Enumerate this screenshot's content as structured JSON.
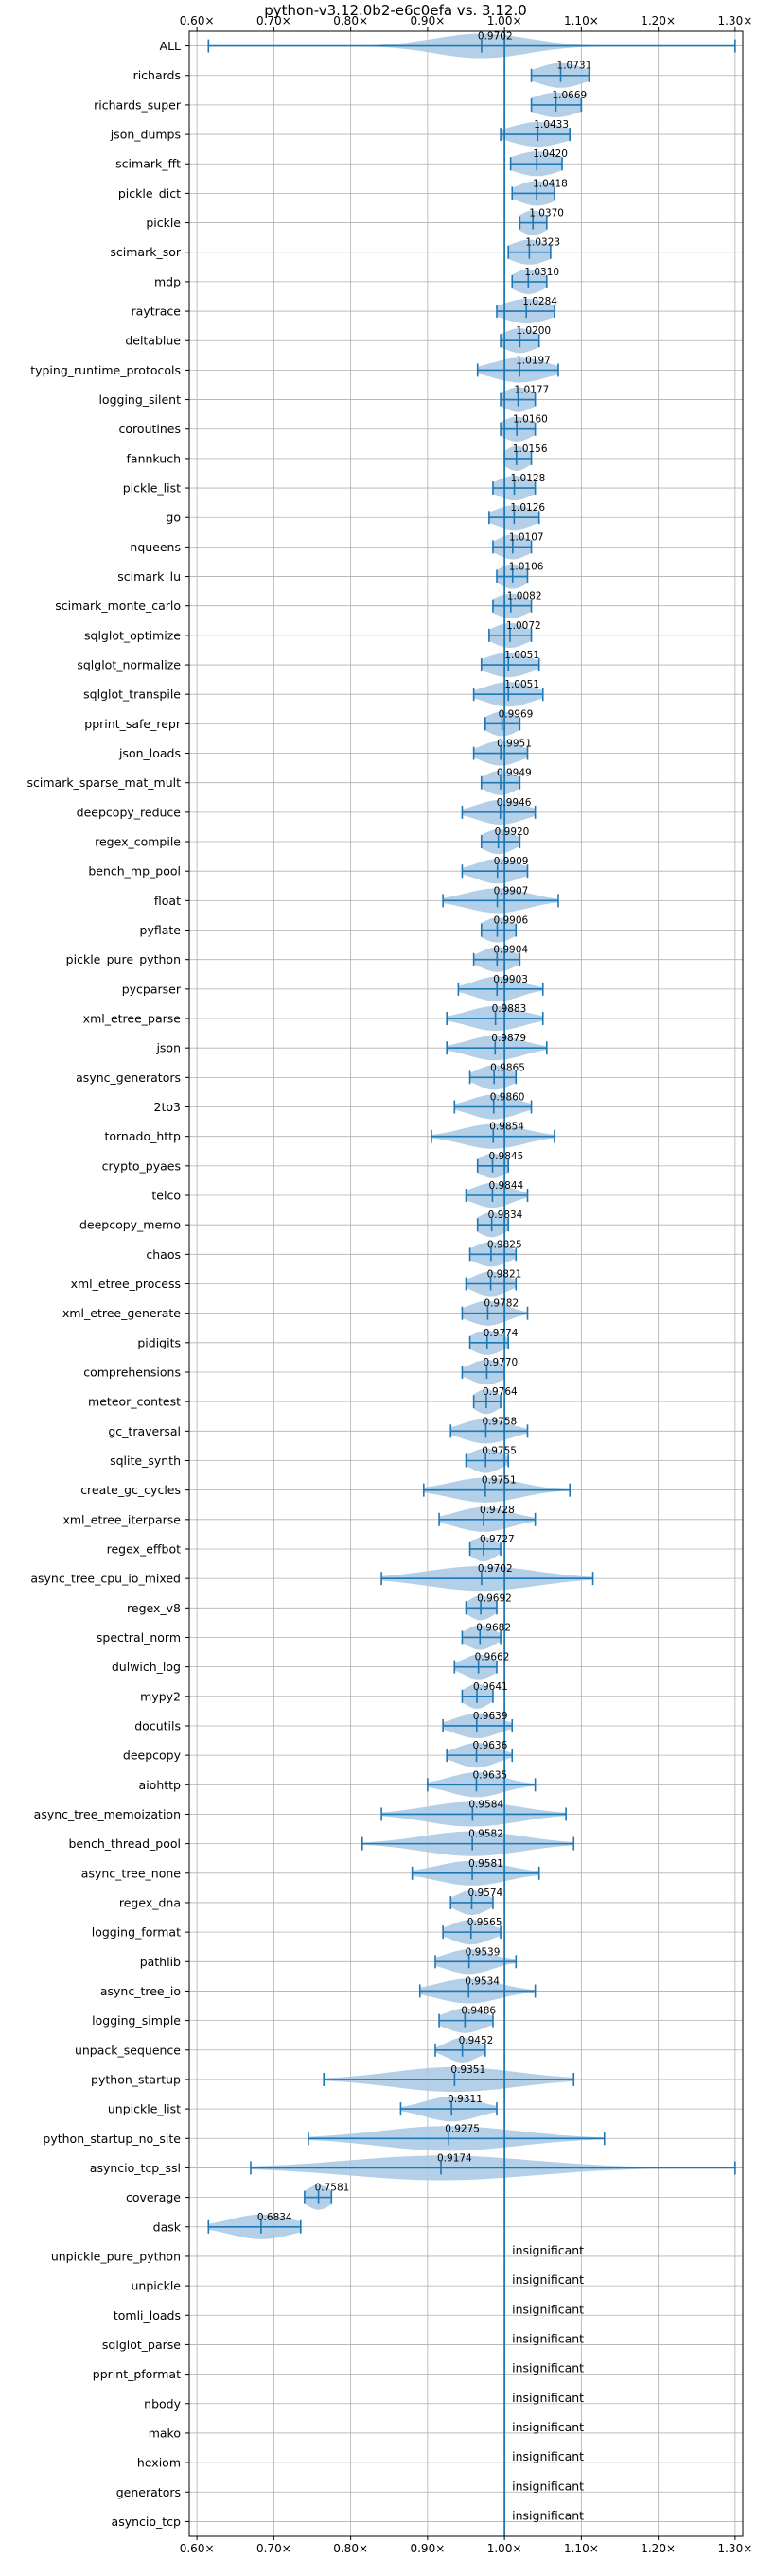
{
  "chart_data": {
    "type": "violin",
    "title": "python-v3.12.0b2-e6c0efa vs. 3.12.0",
    "xlabel": "",
    "ylabel": "",
    "xlim": [
      0.59,
      1.31
    ],
    "x_ticks": [
      0.6,
      0.7,
      0.8,
      0.9,
      1.0,
      1.1,
      1.2,
      1.3
    ],
    "x_tick_labels": [
      "0.60×",
      "0.70×",
      "0.80×",
      "0.90×",
      "1.00×",
      "1.10×",
      "1.20×",
      "1.30×"
    ],
    "reference_line": 1.0,
    "grid": true,
    "colors": {
      "series": "#1f77b4",
      "violin_fill": "#a6c8e4",
      "grid": "#b0b0b0",
      "text": "#000000"
    },
    "insignificant_label": "insignificant",
    "benchmarks": [
      {
        "name": "ALL",
        "value": 0.9702,
        "label": "0.9702",
        "min": 0.615,
        "max": 1.3,
        "spread": 0.06
      },
      {
        "name": "richards",
        "value": 1.0731,
        "label": "1.0731",
        "min": 1.035,
        "max": 1.11,
        "spread": 0.03
      },
      {
        "name": "richards_super",
        "value": 1.0669,
        "label": "1.0669",
        "min": 1.035,
        "max": 1.1,
        "spread": 0.03
      },
      {
        "name": "json_dumps",
        "value": 1.0433,
        "label": "1.0433",
        "min": 0.995,
        "max": 1.085,
        "spread": 0.035
      },
      {
        "name": "scimark_fft",
        "value": 1.042,
        "label": "1.0420",
        "min": 1.008,
        "max": 1.075,
        "spread": 0.03
      },
      {
        "name": "pickle_dict",
        "value": 1.0418,
        "label": "1.0418",
        "min": 1.01,
        "max": 1.065,
        "spread": 0.025
      },
      {
        "name": "pickle",
        "value": 1.037,
        "label": "1.0370",
        "min": 1.02,
        "max": 1.055,
        "spread": 0.018
      },
      {
        "name": "scimark_sor",
        "value": 1.0323,
        "label": "1.0323",
        "min": 1.005,
        "max": 1.06,
        "spread": 0.025
      },
      {
        "name": "mdp",
        "value": 1.031,
        "label": "1.0310",
        "min": 1.01,
        "max": 1.055,
        "spread": 0.02
      },
      {
        "name": "raytrace",
        "value": 1.0284,
        "label": "1.0284",
        "min": 0.99,
        "max": 1.065,
        "spread": 0.03
      },
      {
        "name": "deltablue",
        "value": 1.02,
        "label": "1.0200",
        "min": 0.995,
        "max": 1.045,
        "spread": 0.022
      },
      {
        "name": "typing_runtime_protocols",
        "value": 1.0197,
        "label": "1.0197",
        "min": 0.965,
        "max": 1.07,
        "spread": 0.035
      },
      {
        "name": "logging_silent",
        "value": 1.0177,
        "label": "1.0177",
        "min": 0.995,
        "max": 1.04,
        "spread": 0.02
      },
      {
        "name": "coroutines",
        "value": 1.016,
        "label": "1.0160",
        "min": 0.995,
        "max": 1.04,
        "spread": 0.02
      },
      {
        "name": "fannkuch",
        "value": 1.0156,
        "label": "1.0156",
        "min": 1.0,
        "max": 1.035,
        "spread": 0.016
      },
      {
        "name": "pickle_list",
        "value": 1.0128,
        "label": "1.0128",
        "min": 0.985,
        "max": 1.04,
        "spread": 0.022
      },
      {
        "name": "go",
        "value": 1.0126,
        "label": "1.0126",
        "min": 0.98,
        "max": 1.045,
        "spread": 0.025
      },
      {
        "name": "nqueens",
        "value": 1.0107,
        "label": "1.0107",
        "min": 0.985,
        "max": 1.035,
        "spread": 0.02
      },
      {
        "name": "scimark_lu",
        "value": 1.0106,
        "label": "1.0106",
        "min": 0.99,
        "max": 1.03,
        "spread": 0.018
      },
      {
        "name": "scimark_monte_carlo",
        "value": 1.0082,
        "label": "1.0082",
        "min": 0.985,
        "max": 1.035,
        "spread": 0.022
      },
      {
        "name": "sqlglot_optimize",
        "value": 1.0072,
        "label": "1.0072",
        "min": 0.98,
        "max": 1.035,
        "spread": 0.022
      },
      {
        "name": "sqlglot_normalize",
        "value": 1.0051,
        "label": "1.0051",
        "min": 0.97,
        "max": 1.045,
        "spread": 0.028
      },
      {
        "name": "sqlglot_transpile",
        "value": 1.0051,
        "label": "1.0051",
        "min": 0.96,
        "max": 1.05,
        "spread": 0.03
      },
      {
        "name": "pprint_safe_repr",
        "value": 0.9969,
        "label": "0.9969",
        "min": 0.975,
        "max": 1.02,
        "spread": 0.02
      },
      {
        "name": "json_loads",
        "value": 0.9951,
        "label": "0.9951",
        "min": 0.96,
        "max": 1.03,
        "spread": 0.025
      },
      {
        "name": "scimark_sparse_mat_mult",
        "value": 0.9949,
        "label": "0.9949",
        "min": 0.97,
        "max": 1.02,
        "spread": 0.02
      },
      {
        "name": "deepcopy_reduce",
        "value": 0.9946,
        "label": "0.9946",
        "min": 0.945,
        "max": 1.04,
        "spread": 0.03
      },
      {
        "name": "regex_compile",
        "value": 0.992,
        "label": "0.9920",
        "min": 0.97,
        "max": 1.02,
        "spread": 0.02
      },
      {
        "name": "bench_mp_pool",
        "value": 0.9909,
        "label": "0.9909",
        "min": 0.945,
        "max": 1.03,
        "spread": 0.028
      },
      {
        "name": "float",
        "value": 0.9907,
        "label": "0.9907",
        "min": 0.92,
        "max": 1.07,
        "spread": 0.04
      },
      {
        "name": "pyflate",
        "value": 0.9906,
        "label": "0.9906",
        "min": 0.97,
        "max": 1.015,
        "spread": 0.02
      },
      {
        "name": "pickle_pure_python",
        "value": 0.9904,
        "label": "0.9904",
        "min": 0.96,
        "max": 1.02,
        "spread": 0.022
      },
      {
        "name": "pycparser",
        "value": 0.9903,
        "label": "0.9903",
        "min": 0.94,
        "max": 1.05,
        "spread": 0.03
      },
      {
        "name": "xml_etree_parse",
        "value": 0.9883,
        "label": "0.9883",
        "min": 0.925,
        "max": 1.05,
        "spread": 0.035
      },
      {
        "name": "json",
        "value": 0.9879,
        "label": "0.9879",
        "min": 0.925,
        "max": 1.055,
        "spread": 0.035
      },
      {
        "name": "async_generators",
        "value": 0.9865,
        "label": "0.9865",
        "min": 0.955,
        "max": 1.015,
        "spread": 0.022
      },
      {
        "name": "2to3",
        "value": 0.986,
        "label": "0.9860",
        "min": 0.935,
        "max": 1.035,
        "spread": 0.03
      },
      {
        "name": "tornado_http",
        "value": 0.9854,
        "label": "0.9854",
        "min": 0.905,
        "max": 1.065,
        "spread": 0.04
      },
      {
        "name": "crypto_pyaes",
        "value": 0.9845,
        "label": "0.9845",
        "min": 0.965,
        "max": 1.005,
        "spread": 0.018
      },
      {
        "name": "telco",
        "value": 0.9844,
        "label": "0.9844",
        "min": 0.95,
        "max": 1.03,
        "spread": 0.025
      },
      {
        "name": "deepcopy_memo",
        "value": 0.9834,
        "label": "0.9834",
        "min": 0.965,
        "max": 1.005,
        "spread": 0.018
      },
      {
        "name": "chaos",
        "value": 0.9825,
        "label": "0.9825",
        "min": 0.955,
        "max": 1.015,
        "spread": 0.022
      },
      {
        "name": "xml_etree_process",
        "value": 0.9821,
        "label": "0.9821",
        "min": 0.95,
        "max": 1.015,
        "spread": 0.022
      },
      {
        "name": "xml_etree_generate",
        "value": 0.9782,
        "label": "0.9782",
        "min": 0.945,
        "max": 1.03,
        "spread": 0.025
      },
      {
        "name": "pidigits",
        "value": 0.9774,
        "label": "0.9774",
        "min": 0.955,
        "max": 1.005,
        "spread": 0.02
      },
      {
        "name": "comprehensions",
        "value": 0.977,
        "label": "0.9770",
        "min": 0.945,
        "max": 1.0,
        "spread": 0.022
      },
      {
        "name": "meteor_contest",
        "value": 0.9764,
        "label": "0.9764",
        "min": 0.96,
        "max": 0.995,
        "spread": 0.016
      },
      {
        "name": "gc_traversal",
        "value": 0.9758,
        "label": "0.9758",
        "min": 0.93,
        "max": 1.03,
        "spread": 0.03
      },
      {
        "name": "sqlite_synth",
        "value": 0.9755,
        "label": "0.9755",
        "min": 0.95,
        "max": 1.005,
        "spread": 0.02
      },
      {
        "name": "create_gc_cycles",
        "value": 0.9751,
        "label": "0.9751",
        "min": 0.895,
        "max": 1.085,
        "spread": 0.045
      },
      {
        "name": "xml_etree_iterparse",
        "value": 0.9728,
        "label": "0.9728",
        "min": 0.915,
        "max": 1.04,
        "spread": 0.035
      },
      {
        "name": "regex_effbot",
        "value": 0.9727,
        "label": "0.9727",
        "min": 0.955,
        "max": 0.995,
        "spread": 0.016
      },
      {
        "name": "async_tree_cpu_io_mixed",
        "value": 0.9702,
        "label": "0.9702",
        "min": 0.84,
        "max": 1.115,
        "spread": 0.07
      },
      {
        "name": "regex_v8",
        "value": 0.9692,
        "label": "0.9692",
        "min": 0.95,
        "max": 0.99,
        "spread": 0.016
      },
      {
        "name": "spectral_norm",
        "value": 0.9682,
        "label": "0.9682",
        "min": 0.945,
        "max": 0.995,
        "spread": 0.018
      },
      {
        "name": "dulwich_log",
        "value": 0.9662,
        "label": "0.9662",
        "min": 0.935,
        "max": 0.99,
        "spread": 0.02
      },
      {
        "name": "mypy2",
        "value": 0.9641,
        "label": "0.9641",
        "min": 0.945,
        "max": 0.985,
        "spread": 0.016
      },
      {
        "name": "docutils",
        "value": 0.9639,
        "label": "0.9639",
        "min": 0.92,
        "max": 1.01,
        "spread": 0.028
      },
      {
        "name": "deepcopy",
        "value": 0.9636,
        "label": "0.9636",
        "min": 0.925,
        "max": 1.01,
        "spread": 0.026
      },
      {
        "name": "aiohttp",
        "value": 0.9635,
        "label": "0.9635",
        "min": 0.9,
        "max": 1.04,
        "spread": 0.035
      },
      {
        "name": "async_tree_memoization",
        "value": 0.9584,
        "label": "0.9584",
        "min": 0.84,
        "max": 1.08,
        "spread": 0.06
      },
      {
        "name": "bench_thread_pool",
        "value": 0.9582,
        "label": "0.9582",
        "min": 0.815,
        "max": 1.09,
        "spread": 0.065
      },
      {
        "name": "async_tree_none",
        "value": 0.9581,
        "label": "0.9581",
        "min": 0.88,
        "max": 1.045,
        "spread": 0.045
      },
      {
        "name": "regex_dna",
        "value": 0.9574,
        "label": "0.9574",
        "min": 0.93,
        "max": 0.985,
        "spread": 0.02
      },
      {
        "name": "logging_format",
        "value": 0.9565,
        "label": "0.9565",
        "min": 0.92,
        "max": 0.995,
        "spread": 0.025
      },
      {
        "name": "pathlib",
        "value": 0.9539,
        "label": "0.9539",
        "min": 0.91,
        "max": 1.015,
        "spread": 0.03
      },
      {
        "name": "async_tree_io",
        "value": 0.9534,
        "label": "0.9534",
        "min": 0.89,
        "max": 1.04,
        "spread": 0.04
      },
      {
        "name": "logging_simple",
        "value": 0.9486,
        "label": "0.9486",
        "min": 0.915,
        "max": 0.985,
        "spread": 0.025
      },
      {
        "name": "unpack_sequence",
        "value": 0.9452,
        "label": "0.9452",
        "min": 0.91,
        "max": 0.975,
        "spread": 0.02
      },
      {
        "name": "python_startup",
        "value": 0.9351,
        "label": "0.9351",
        "min": 0.765,
        "max": 1.09,
        "spread": 0.08
      },
      {
        "name": "unpickle_list",
        "value": 0.9311,
        "label": "0.9311",
        "min": 0.865,
        "max": 0.99,
        "spread": 0.035
      },
      {
        "name": "python_startup_no_site",
        "value": 0.9275,
        "label": "0.9275",
        "min": 0.745,
        "max": 1.13,
        "spread": 0.09
      },
      {
        "name": "asyncio_tcp_ssl",
        "value": 0.9174,
        "label": "0.9174",
        "min": 0.67,
        "max": 1.3,
        "spread": 0.12
      },
      {
        "name": "coverage",
        "value": 0.7581,
        "label": "0.7581",
        "min": 0.74,
        "max": 0.775,
        "spread": 0.016
      },
      {
        "name": "dask",
        "value": 0.6834,
        "label": "0.6834",
        "min": 0.615,
        "max": 0.735,
        "spread": 0.04
      },
      {
        "name": "unpickle_pure_python",
        "insignificant": true
      },
      {
        "name": "unpickle",
        "insignificant": true
      },
      {
        "name": "tomli_loads",
        "insignificant": true
      },
      {
        "name": "sqlglot_parse",
        "insignificant": true
      },
      {
        "name": "pprint_pformat",
        "insignificant": true
      },
      {
        "name": "nbody",
        "insignificant": true
      },
      {
        "name": "mako",
        "insignificant": true
      },
      {
        "name": "hexiom",
        "insignificant": true
      },
      {
        "name": "generators",
        "insignificant": true
      },
      {
        "name": "asyncio_tcp",
        "insignificant": true
      }
    ]
  }
}
